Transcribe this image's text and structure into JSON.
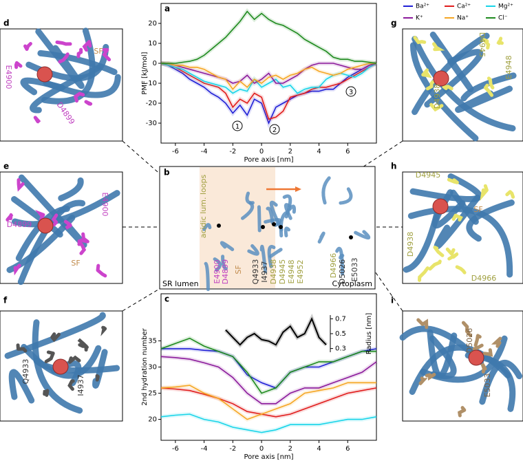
{
  "chart_data": [
    {
      "type": "line",
      "label": "a",
      "xlabel": "Pore axis [nm]",
      "ylabel": "PMF [kJ/mol]",
      "x": [
        -7,
        -6.5,
        -6,
        -5.5,
        -5,
        -4.5,
        -4,
        -3.5,
        -3,
        -2.5,
        -2,
        -1.5,
        -1,
        -0.5,
        0,
        0.5,
        1,
        1.5,
        2,
        2.5,
        3,
        3.5,
        4,
        4.5,
        5,
        5.5,
        6,
        6.5,
        7,
        7.5,
        8
      ],
      "xlim": [
        -7,
        8
      ],
      "xticks": [
        -6,
        -4,
        -2,
        0,
        2,
        4,
        6
      ],
      "ylim": [
        -40,
        30
      ],
      "yticks": [
        -30,
        -20,
        -10,
        0,
        10,
        20
      ],
      "series": [
        {
          "name": "Ba²⁺",
          "color": "#1f1fd6",
          "values": [
            0,
            -1,
            -3,
            -5,
            -8,
            -10,
            -12,
            -15,
            -17,
            -20,
            -25,
            -21,
            -26,
            -18,
            -20,
            -30,
            -22,
            -20,
            -18,
            -16,
            -15,
            -14,
            -14,
            -13,
            -13,
            -10,
            -7,
            -5,
            -3,
            -1,
            0
          ]
        },
        {
          "name": "Ca²⁺",
          "color": "#e01b1b",
          "values": [
            0,
            -1,
            -2,
            -4,
            -6,
            -8,
            -10,
            -11,
            -12,
            -15,
            -22,
            -18,
            -20,
            -15,
            -17,
            -28,
            -27,
            -24,
            -17,
            -16,
            -15,
            -13,
            -12,
            -12,
            -11,
            -10,
            -8,
            -6,
            -4,
            -2,
            0
          ]
        },
        {
          "name": "Mg²⁺",
          "color": "#17d4e8",
          "values": [
            0,
            -1,
            -2,
            -3,
            -5,
            -7,
            -9,
            -10,
            -11,
            -12,
            -15,
            -13,
            -14,
            -8,
            -12,
            -10,
            -8,
            -12,
            -11,
            -15,
            -13,
            -12,
            -12,
            -8,
            -6,
            -5,
            -6,
            -7,
            -5,
            -2,
            0
          ]
        },
        {
          "name": "K⁺",
          "color": "#8b1a9b",
          "values": [
            0,
            0,
            -1,
            -2,
            -3,
            -4,
            -5,
            -6,
            -7,
            -8,
            -10,
            -9,
            -6,
            -10,
            -8,
            -5,
            -10,
            -10,
            -8,
            -6,
            -3,
            -1,
            0,
            0,
            0,
            -1,
            -2,
            -3,
            -3,
            -1,
            0
          ]
        },
        {
          "name": "Na⁺",
          "color": "#f5a623",
          "values": [
            0,
            0,
            -1,
            -1,
            -2,
            -2,
            -3,
            -5,
            -7,
            -8,
            -13,
            -9,
            -12,
            -8,
            -10,
            -7,
            -6,
            -8,
            -6,
            -5,
            -3,
            -2,
            -4,
            -5,
            -6,
            -5,
            -3,
            -2,
            -1,
            0,
            0
          ]
        },
        {
          "name": "Cl⁻",
          "color": "#1e8a1e",
          "values": [
            0,
            0,
            0,
            0.5,
            1,
            2,
            4,
            7,
            10,
            13,
            17,
            21,
            26,
            22,
            25,
            22,
            20,
            19,
            17,
            15,
            12,
            10,
            8,
            6,
            3,
            2,
            2,
            1,
            1,
            0.5,
            0
          ]
        }
      ],
      "annotations": [
        "1",
        "2",
        "3"
      ]
    },
    {
      "type": "line",
      "label": "c",
      "xlabel": "Pore axis [nm]",
      "ylabel": "2nd hydration number",
      "x": [
        -7,
        -6,
        -5,
        -4,
        -3,
        -2,
        -1,
        0,
        1,
        2,
        3,
        4,
        5,
        6,
        7,
        8
      ],
      "xlim": [
        -7,
        8
      ],
      "xticks": [
        -6,
        -4,
        -2,
        0,
        2,
        4,
        6
      ],
      "ylim": [
        16,
        44
      ],
      "yticks": [
        20,
        25,
        30,
        35
      ],
      "series": [
        {
          "color": "#1f1fd6",
          "values": [
            33.5,
            33.5,
            33.5,
            33.2,
            33,
            32,
            28.5,
            27,
            26,
            29,
            30,
            30,
            31,
            32,
            33,
            33.5
          ]
        },
        {
          "color": "#e01b1b",
          "values": [
            26,
            25.8,
            25.5,
            24.8,
            24,
            23,
            21.5,
            21,
            20.5,
            21,
            22,
            23,
            24,
            25,
            25.5,
            26
          ]
        },
        {
          "color": "#17d4e8",
          "values": [
            20.5,
            20.8,
            21,
            20,
            19.5,
            18.5,
            18,
            17.5,
            18,
            19,
            19,
            19,
            19.5,
            20,
            20,
            20.5
          ]
        },
        {
          "color": "#8b1a9b",
          "values": [
            32,
            31.8,
            31.5,
            30.8,
            30,
            28,
            25,
            23,
            23,
            25,
            26,
            26,
            27,
            28,
            29,
            31
          ]
        },
        {
          "color": "#f5a623",
          "values": [
            26,
            26.2,
            26.5,
            25,
            24,
            22,
            20,
            21,
            22,
            23,
            25,
            25.5,
            26,
            27,
            27,
            27
          ]
        },
        {
          "color": "#1e8a1e",
          "values": [
            33.5,
            34.5,
            35.5,
            34,
            33,
            32,
            29,
            25,
            26,
            29,
            30,
            31,
            31,
            32,
            33,
            33
          ]
        }
      ]
    },
    {
      "type": "line",
      "ylabel": "Radius [nm]",
      "x": [
        -2.5,
        -2,
        -1.5,
        -1,
        -0.5,
        0,
        0.5,
        1,
        1.5,
        2,
        2.5,
        3,
        3.5,
        4,
        4.5
      ],
      "ylim": [
        0.25,
        0.75
      ],
      "yticks": [
        0.3,
        0.5,
        0.7
      ],
      "series": [
        {
          "color": "#000000",
          "values": [
            0.55,
            0.45,
            0.35,
            0.45,
            0.5,
            0.42,
            0.4,
            0.35,
            0.52,
            0.6,
            0.45,
            0.5,
            0.7,
            0.45,
            0.35
          ]
        }
      ]
    }
  ],
  "panels": {
    "b": {
      "label": "b",
      "texts": [
        "acidic lum. loops",
        "E4900",
        "D4899",
        "SF",
        "Q4933",
        "I4937",
        "D4938",
        "D4945",
        "E4948",
        "E4952",
        "D4966",
        "D5026",
        "E5033",
        "SR lumen",
        "Cytoplasm"
      ]
    },
    "d": {
      "label": "d",
      "texts": [
        "SF",
        "E4900",
        "D4899"
      ]
    },
    "e": {
      "label": "e",
      "texts": [
        "D4899",
        "SF",
        "E4900"
      ]
    },
    "f": {
      "label": "f",
      "texts": [
        "Q4933",
        "I4937"
      ]
    },
    "g": {
      "label": "g",
      "texts": [
        "D4945",
        "E4948",
        "D4938"
      ]
    },
    "h": {
      "label": "h",
      "texts": [
        "D4945",
        "SF",
        "D4938",
        "D4966"
      ]
    },
    "i": {
      "label": "i",
      "texts": [
        "D5026",
        "E5033"
      ]
    }
  }
}
